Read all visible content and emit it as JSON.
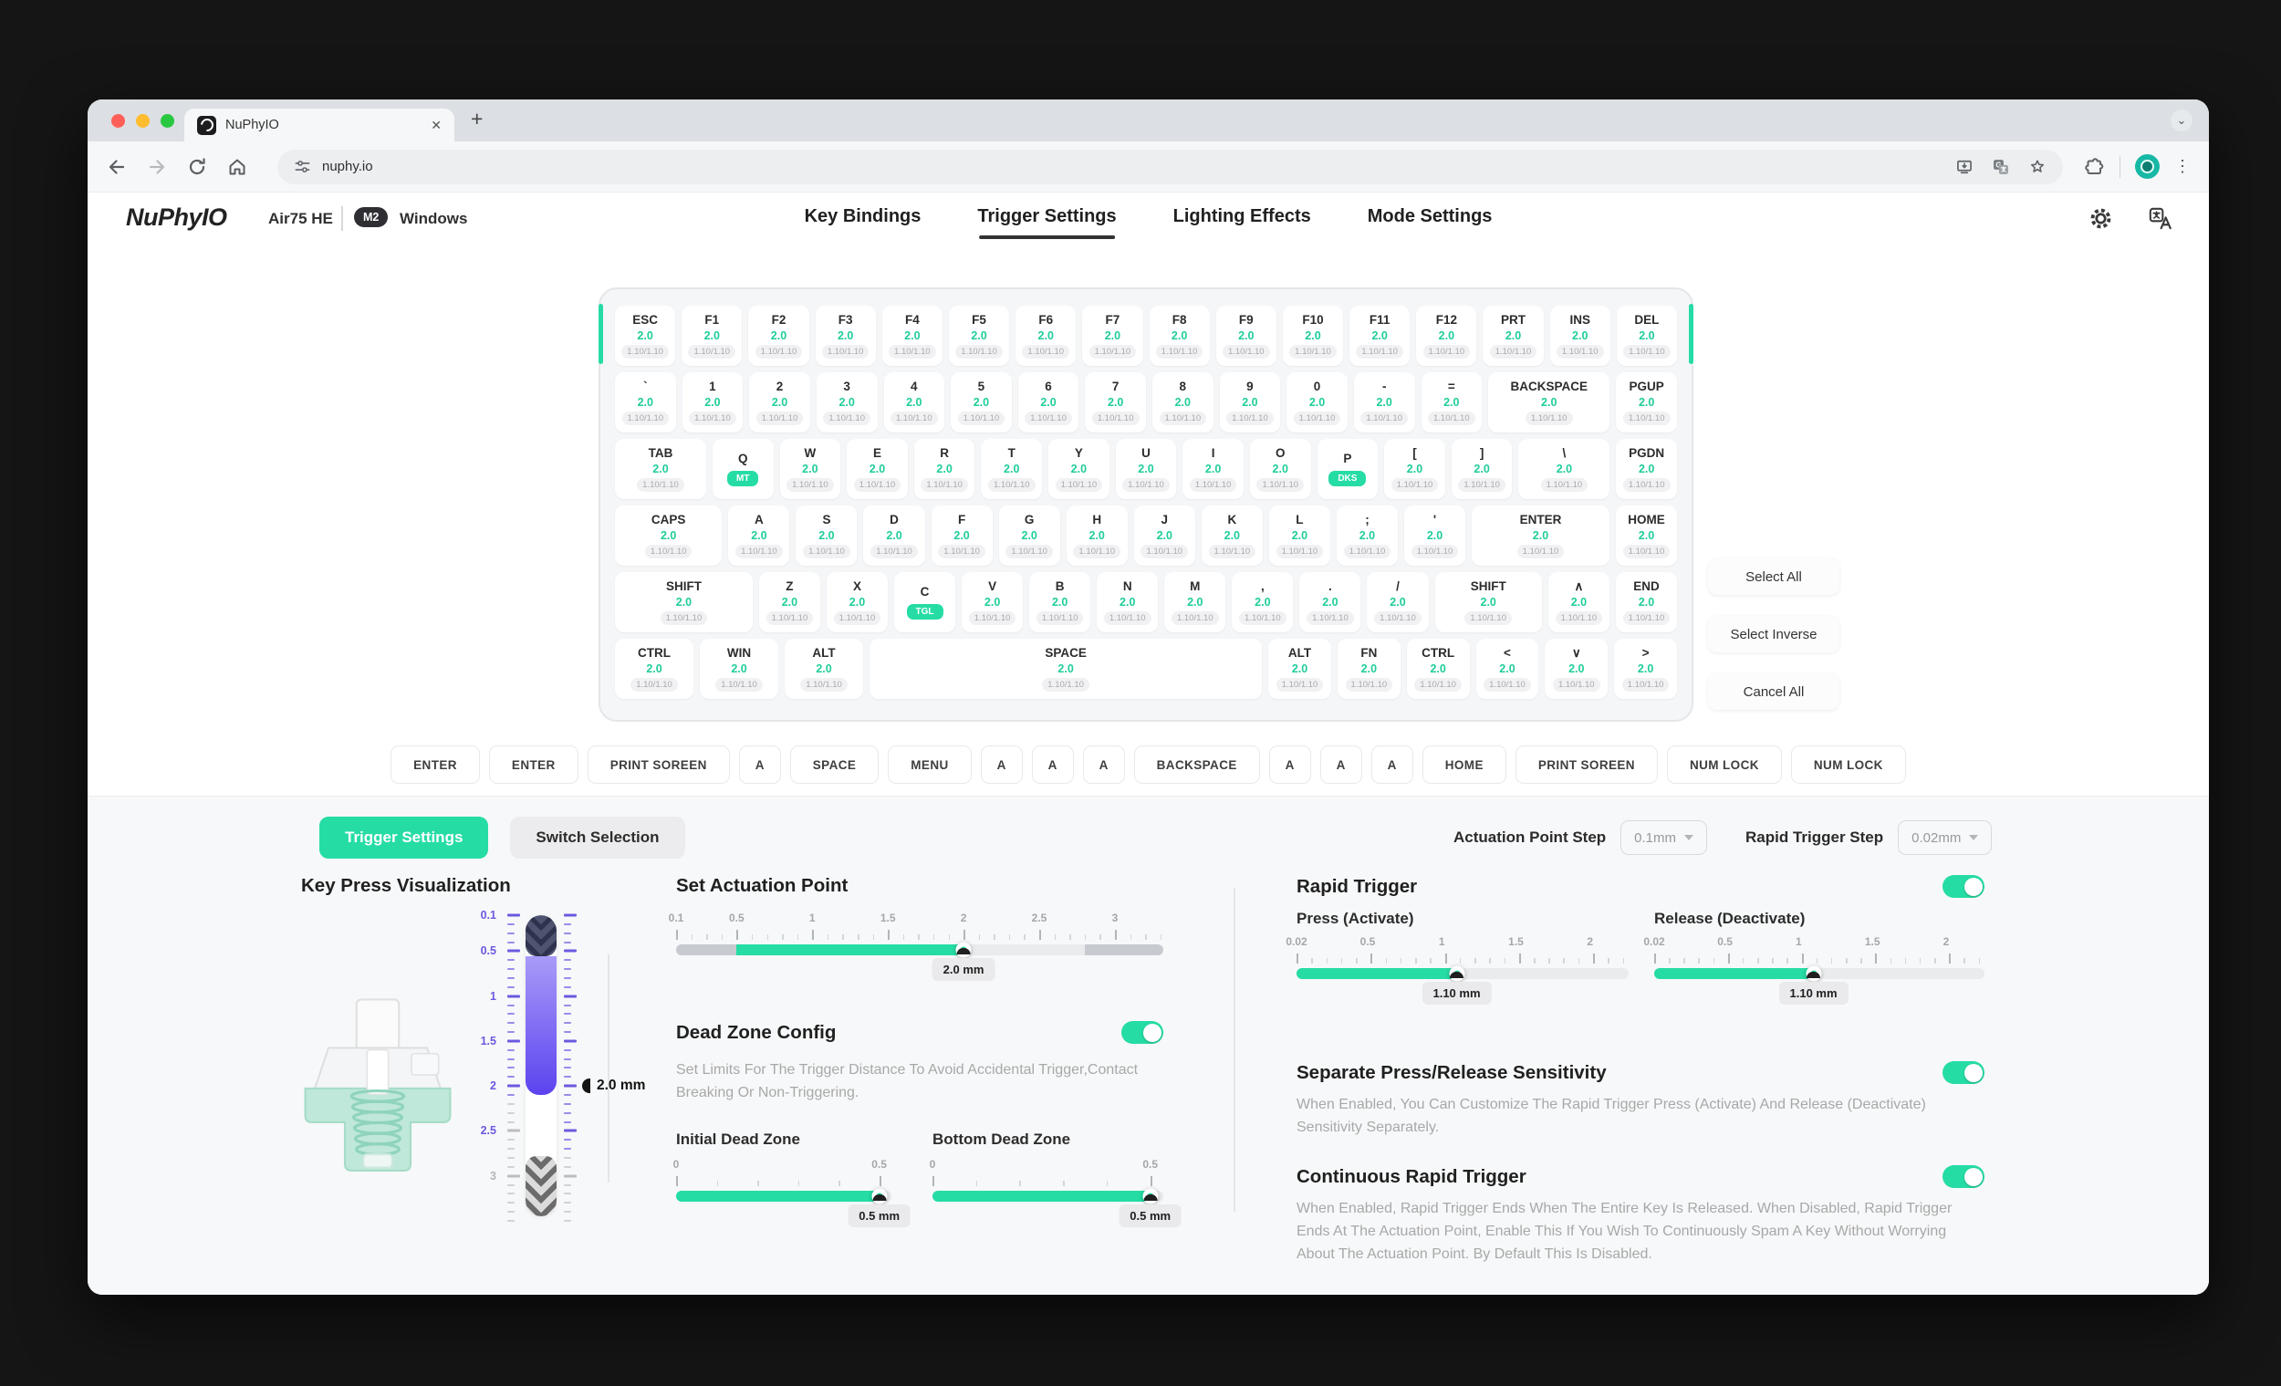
{
  "browser": {
    "tab_title": "NuPhyIO",
    "url": "nuphy.io"
  },
  "glyphs": {
    "close": "✕",
    "new_tab": "+",
    "tab_search": "⌄",
    "menu": "⋮"
  },
  "header": {
    "logo": "NuPhyIO",
    "device": "Air75 HE",
    "badge": "M2",
    "os": "Windows",
    "nav": [
      {
        "label": "Key Bindings",
        "active": false
      },
      {
        "label": "Trigger Settings",
        "active": true
      },
      {
        "label": "Lighting Effects",
        "active": false
      },
      {
        "label": "Mode Settings",
        "active": false
      }
    ]
  },
  "keyboard": {
    "default_actuation": "2.0",
    "default_rapid": "1.10/1.10",
    "rows": [
      [
        {
          "l": "ESC"
        },
        {
          "l": "F1"
        },
        {
          "l": "F2"
        },
        {
          "l": "F3"
        },
        {
          "l": "F4"
        },
        {
          "l": "F5"
        },
        {
          "l": "F6"
        },
        {
          "l": "F7"
        },
        {
          "l": "F8"
        },
        {
          "l": "F9"
        },
        {
          "l": "F10"
        },
        {
          "l": "F11"
        },
        {
          "l": "F12"
        },
        {
          "l": "PRT"
        },
        {
          "l": "INS"
        },
        {
          "l": "DEL"
        }
      ],
      [
        {
          "l": "`",
          "n": "grave"
        },
        {
          "l": "1"
        },
        {
          "l": "2"
        },
        {
          "l": "3"
        },
        {
          "l": "4"
        },
        {
          "l": "5"
        },
        {
          "l": "6"
        },
        {
          "l": "7"
        },
        {
          "l": "8"
        },
        {
          "l": "9"
        },
        {
          "l": "0"
        },
        {
          "l": "-",
          "n": "minus"
        },
        {
          "l": "=",
          "n": "equals"
        },
        {
          "l": "BACKSPACE",
          "w": 2
        },
        {
          "l": "PGUP"
        }
      ],
      [
        {
          "l": "TAB",
          "w": 1.5
        },
        {
          "l": "Q",
          "badge": "MT"
        },
        {
          "l": "W"
        },
        {
          "l": "E"
        },
        {
          "l": "R"
        },
        {
          "l": "T"
        },
        {
          "l": "Y"
        },
        {
          "l": "U"
        },
        {
          "l": "I"
        },
        {
          "l": "O"
        },
        {
          "l": "P",
          "badge": "DKS"
        },
        {
          "l": "[",
          "n": "lbracket"
        },
        {
          "l": "]",
          "n": "rbracket"
        },
        {
          "l": "\\",
          "n": "backslash",
          "w": 1.5
        },
        {
          "l": "PGDN"
        }
      ],
      [
        {
          "l": "CAPS",
          "w": 1.75
        },
        {
          "l": "A"
        },
        {
          "l": "S"
        },
        {
          "l": "D"
        },
        {
          "l": "F"
        },
        {
          "l": "G"
        },
        {
          "l": "H"
        },
        {
          "l": "J"
        },
        {
          "l": "K"
        },
        {
          "l": "L"
        },
        {
          "l": ";",
          "n": "semicolon"
        },
        {
          "l": "'",
          "n": "quote"
        },
        {
          "l": "ENTER",
          "w": 2.25
        },
        {
          "l": "HOME"
        }
      ],
      [
        {
          "l": "SHIFT",
          "w": 2.25
        },
        {
          "l": "Z"
        },
        {
          "l": "X"
        },
        {
          "l": "C",
          "badge": "TGL"
        },
        {
          "l": "V"
        },
        {
          "l": "B"
        },
        {
          "l": "N"
        },
        {
          "l": "M"
        },
        {
          "l": ",",
          "n": "comma"
        },
        {
          "l": ".",
          "n": "period"
        },
        {
          "l": "/",
          "n": "slash"
        },
        {
          "l": "SHIFT",
          "n": "shift-right",
          "w": 1.75
        },
        {
          "l": "∧",
          "n": "arrow-up"
        },
        {
          "l": "END"
        }
      ],
      [
        {
          "l": "CTRL",
          "w": 1.25
        },
        {
          "l": "WIN",
          "w": 1.25
        },
        {
          "l": "ALT",
          "w": 1.25
        },
        {
          "l": "SPACE",
          "w": 6.25
        },
        {
          "l": "ALT",
          "n": "alt-right"
        },
        {
          "l": "FN"
        },
        {
          "l": "CTRL",
          "n": "ctrl-right"
        },
        {
          "l": "<",
          "n": "arrow-left"
        },
        {
          "l": "∨",
          "n": "arrow-down"
        },
        {
          "l": ">",
          "n": "arrow-right"
        }
      ]
    ]
  },
  "side_buttons": [
    "Select All",
    "Select Inverse",
    "Cancel All"
  ],
  "binding_row": [
    "ENTER",
    "ENTER",
    "PRINT SOREEN",
    "A",
    "SPACE",
    "MENU",
    "A",
    "A",
    "A",
    "BACKSPACE",
    "A",
    "A",
    "A",
    "HOME",
    "PRINT SOREEN",
    "NUM LOCK",
    "NUM LOCK"
  ],
  "panel": {
    "tabs": [
      {
        "label": "Trigger Settings",
        "active": true
      },
      {
        "label": "Switch Selection",
        "active": false
      }
    ],
    "steps": [
      {
        "label": "Actuation Point Step",
        "value": "0.1mm"
      },
      {
        "label": "Rapid Trigger Step",
        "value": "0.02mm"
      }
    ],
    "key_press_viz": {
      "title": "Key Press Visualization",
      "marker_text": "2.0 mm",
      "ruler": {
        "min": 0.1,
        "max": 3.45,
        "tick_step": 0.1,
        "purple_left_until": 2.15,
        "purple_right_until": 2.8,
        "labels": [
          [
            "0.1",
            0.1
          ],
          [
            "0.5",
            0.5
          ],
          [
            "1",
            1
          ],
          [
            "1.5",
            1.5
          ],
          [
            "2",
            2
          ],
          [
            "2.5",
            2.5
          ],
          [
            "3",
            3,
            "gray"
          ]
        ],
        "zones": [
          {
            "from": 0.1,
            "to": 0.56,
            "type": "chev-dark"
          },
          {
            "from": 0.56,
            "to": 2.1,
            "type": "purple"
          },
          {
            "from": 2.1,
            "to": 2.78,
            "type": "plain"
          },
          {
            "from": 2.78,
            "to": 3.45,
            "type": "chev-gray"
          }
        ],
        "marker_value": 2
      }
    },
    "actuation": {
      "title": "Set Actuation Point",
      "slider": {
        "min": 0.1,
        "max": 3.32,
        "step": 0.1,
        "value": 2,
        "value_text": "2.0 mm",
        "labels": [
          [
            "0.1",
            0.1
          ],
          [
            "0.5",
            0.5
          ],
          [
            "1",
            1
          ],
          [
            "1.5",
            1.5
          ],
          [
            "2",
            2
          ],
          [
            "2.5",
            2.5
          ],
          [
            "3",
            3
          ]
        ],
        "segments": [
          {
            "from": 0.1,
            "to": 0.5,
            "color": "#c7cbcf"
          },
          {
            "from": 0.5,
            "to": 2,
            "color": "#26dca5"
          },
          {
            "from": 2,
            "to": 2.8,
            "color": "#e9ebed"
          },
          {
            "from": 2.8,
            "to": 3.32,
            "color": "#c7cbcf"
          }
        ]
      }
    },
    "dead_zone": {
      "title": "Dead Zone Config",
      "enabled": true,
      "description": "Set Limits For The Trigger Distance To Avoid Accidental Trigger,Contact Breaking Or Non-Triggering.",
      "initial": {
        "label": "Initial Dead Zone",
        "slider": {
          "min": 0,
          "max": 0.53,
          "step": 0.1,
          "value": 0.5,
          "value_text": "0.5 mm",
          "labels": [
            [
              "0",
              0
            ],
            [
              "0.5",
              0.5
            ]
          ],
          "segments": [
            {
              "from": 0,
              "to": 0.5,
              "color": "#26dca5"
            },
            {
              "from": 0.5,
              "to": 0.53,
              "color": "#e9ebed"
            }
          ]
        }
      },
      "bottom": {
        "label": "Bottom Dead Zone",
        "slider": {
          "min": 0,
          "max": 0.53,
          "step": 0.1,
          "value": 0.5,
          "value_text": "0.5 mm",
          "labels": [
            [
              "0",
              0
            ],
            [
              "0.5",
              0.5
            ]
          ],
          "segments": [
            {
              "from": 0,
              "to": 0.5,
              "color": "#26dca5"
            },
            {
              "from": 0.5,
              "to": 0.53,
              "color": "#e9ebed"
            }
          ]
        }
      }
    },
    "rapid_trigger": {
      "title": "Rapid Trigger",
      "enabled": true,
      "press": {
        "label": "Press (Activate)",
        "slider": {
          "min": 0.02,
          "max": 2.26,
          "step": 0.1,
          "value": 1.1,
          "value_text": "1.10 mm",
          "labels": [
            [
              "0.02",
              0.02
            ],
            [
              "0.5",
              0.5
            ],
            [
              "1",
              1
            ],
            [
              "1.5",
              1.5
            ],
            [
              "2",
              2
            ]
          ],
          "segments": [
            {
              "from": 0.02,
              "to": 1.1,
              "color": "#26dca5"
            },
            {
              "from": 1.1,
              "to": 2.26,
              "color": "#e9ebed"
            }
          ]
        }
      },
      "release": {
        "label": "Release (Deactivate)",
        "slider": {
          "min": 0.02,
          "max": 2.26,
          "step": 0.1,
          "value": 1.1,
          "value_text": "1.10 mm",
          "labels": [
            [
              "0.02",
              0.02
            ],
            [
              "0.5",
              0.5
            ],
            [
              "1",
              1
            ],
            [
              "1.5",
              1.5
            ],
            [
              "2",
              2
            ]
          ],
          "segments": [
            {
              "from": 0.02,
              "to": 1.1,
              "color": "#26dca5"
            },
            {
              "from": 1.1,
              "to": 2.26,
              "color": "#e9ebed"
            }
          ]
        }
      }
    },
    "separate": {
      "title": "Separate Press/Release Sensitivity",
      "enabled": true,
      "description": "When Enabled, You Can Customize The Rapid Trigger Press (Activate) And Release (Deactivate) Sensitivity Separately."
    },
    "continuous": {
      "title": "Continuous Rapid Trigger",
      "enabled": true,
      "description": "When Enabled, Rapid Trigger Ends When The Entire Key Is Released. When Disabled, Rapid Trigger Ends At The Actuation Point, Enable This If You Wish To Continuously Spam A Key Without Worrying About The Actuation Point. By Default This Is Disabled."
    }
  },
  "colors": {
    "accent": "#26dca5",
    "purple": "#6a5ae0"
  }
}
